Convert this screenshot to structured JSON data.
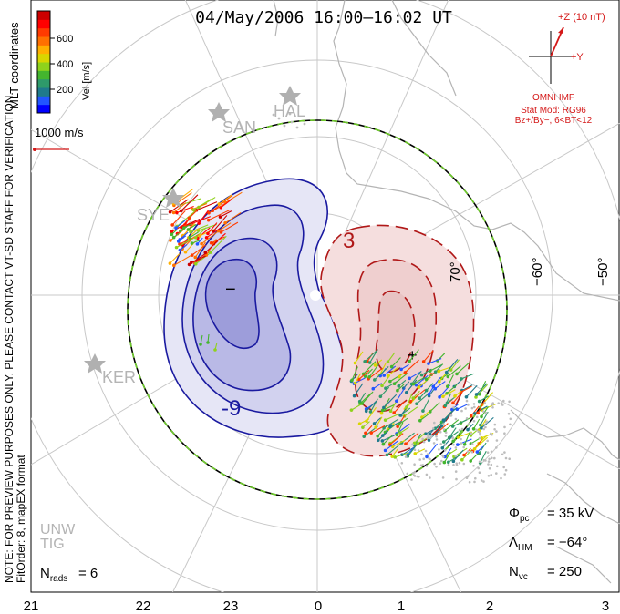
{
  "title": "04/May/2006 16:00–16:02 UT",
  "colorbar": {
    "label": "Vel [m/s]",
    "ticks": [
      "600",
      "400",
      "200"
    ],
    "colors": [
      "#0000ff",
      "#2255ff",
      "#1f7a8c",
      "#2e9a6a",
      "#44b52e",
      "#8fd21c",
      "#d9d600",
      "#ffb000",
      "#ff7000",
      "#ff3a00",
      "#ff0000",
      "#cc0000"
    ]
  },
  "coords_label": "MLT coordinates",
  "vector_scale": "1000 m/s",
  "imf": {
    "z_label": "+Z (10 nT)",
    "y_label": "+Y",
    "source": "OMNI IMF",
    "model": "Stat Mod: RG96",
    "conditions": "Bz+/By−, 6<BT<12"
  },
  "note": "NOTE: FOR PREVIEW PURPOSES ONLY. PLEASE CONTACT VT-SD STAFF FOR VERIFICATION.",
  "fit_order": "FitOrder: 8, mapEX format",
  "stations": [
    "SAN",
    "HAL",
    "SYE",
    "KER",
    "UNW",
    "TIG"
  ],
  "contour_labels": {
    "positive": "3",
    "negative": "-9"
  },
  "cell_markers": {
    "min": "−",
    "max": "+"
  },
  "lat_labels": [
    "70°",
    "−60°",
    "−50°"
  ],
  "stats": {
    "phi_pc": "= 35 kV",
    "lambda_hm": "= −64°",
    "n_vc": "= 250",
    "n_rads": "= 6"
  },
  "mlt_ticks": [
    "21",
    "22",
    "23",
    "0",
    "1",
    "2",
    "3"
  ],
  "colors": {
    "negative_cell": "#1a1aa0",
    "positive_cell": "#b01818",
    "hmb": "#6ecb2a"
  }
}
